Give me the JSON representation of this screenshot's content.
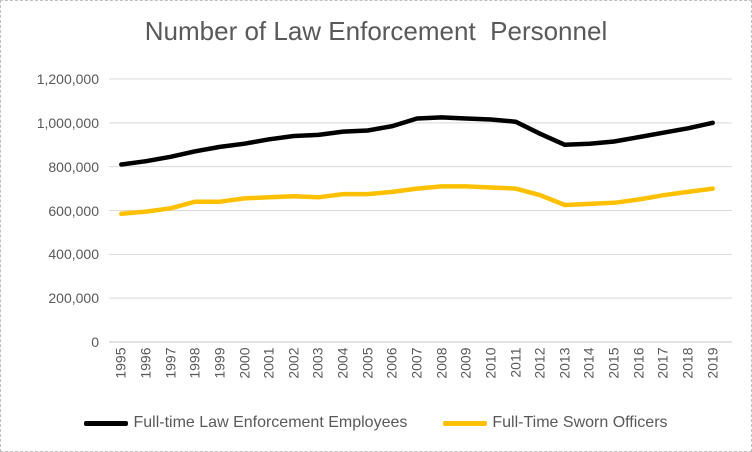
{
  "chart_data": {
    "type": "line",
    "title": "Number of Law Enforcement  Personnel",
    "categories": [
      "1995",
      "1996",
      "1997",
      "1998",
      "1999",
      "2000",
      "2001",
      "2002",
      "2003",
      "2004",
      "2005",
      "2006",
      "2007",
      "2008",
      "2009",
      "2010",
      "2011",
      "2012",
      "2013",
      "2014",
      "2015",
      "2016",
      "2017",
      "2018",
      "2019"
    ],
    "series": [
      {
        "name": "Full-time Law Enforcement Employees",
        "color": "#000000",
        "values": [
          810000,
          825000,
          845000,
          870000,
          890000,
          905000,
          925000,
          940000,
          945000,
          960000,
          965000,
          985000,
          1020000,
          1025000,
          1020000,
          1015000,
          1005000,
          950000,
          900000,
          905000,
          915000,
          935000,
          955000,
          975000,
          1000000
        ]
      },
      {
        "name": "Full-Time Sworn Officers",
        "color": "#FFC000",
        "values": [
          585000,
          595000,
          610000,
          640000,
          640000,
          655000,
          660000,
          665000,
          660000,
          675000,
          675000,
          685000,
          700000,
          710000,
          710000,
          705000,
          700000,
          670000,
          625000,
          630000,
          635000,
          650000,
          670000,
          685000,
          700000
        ]
      }
    ],
    "ylim": [
      0,
      1200000
    ],
    "yticks": [
      {
        "v": 0,
        "label": "0"
      },
      {
        "v": 200000,
        "label": "200,000"
      },
      {
        "v": 400000,
        "label": "400,000"
      },
      {
        "v": 600000,
        "label": "600,000"
      },
      {
        "v": 800000,
        "label": "800,000"
      },
      {
        "v": 1000000,
        "label": "1,000,000"
      },
      {
        "v": 1200000,
        "label": "1,200,000"
      }
    ],
    "grid": true,
    "legend_position": "bottom",
    "xlabel": "",
    "ylabel": ""
  },
  "styles": {
    "text_color": "#595959",
    "gridline_color": "#d9d9d9",
    "axis_line_color": "#c6c6c6",
    "background": "#ffffff",
    "frame_border_color": "#bfbfbf"
  }
}
